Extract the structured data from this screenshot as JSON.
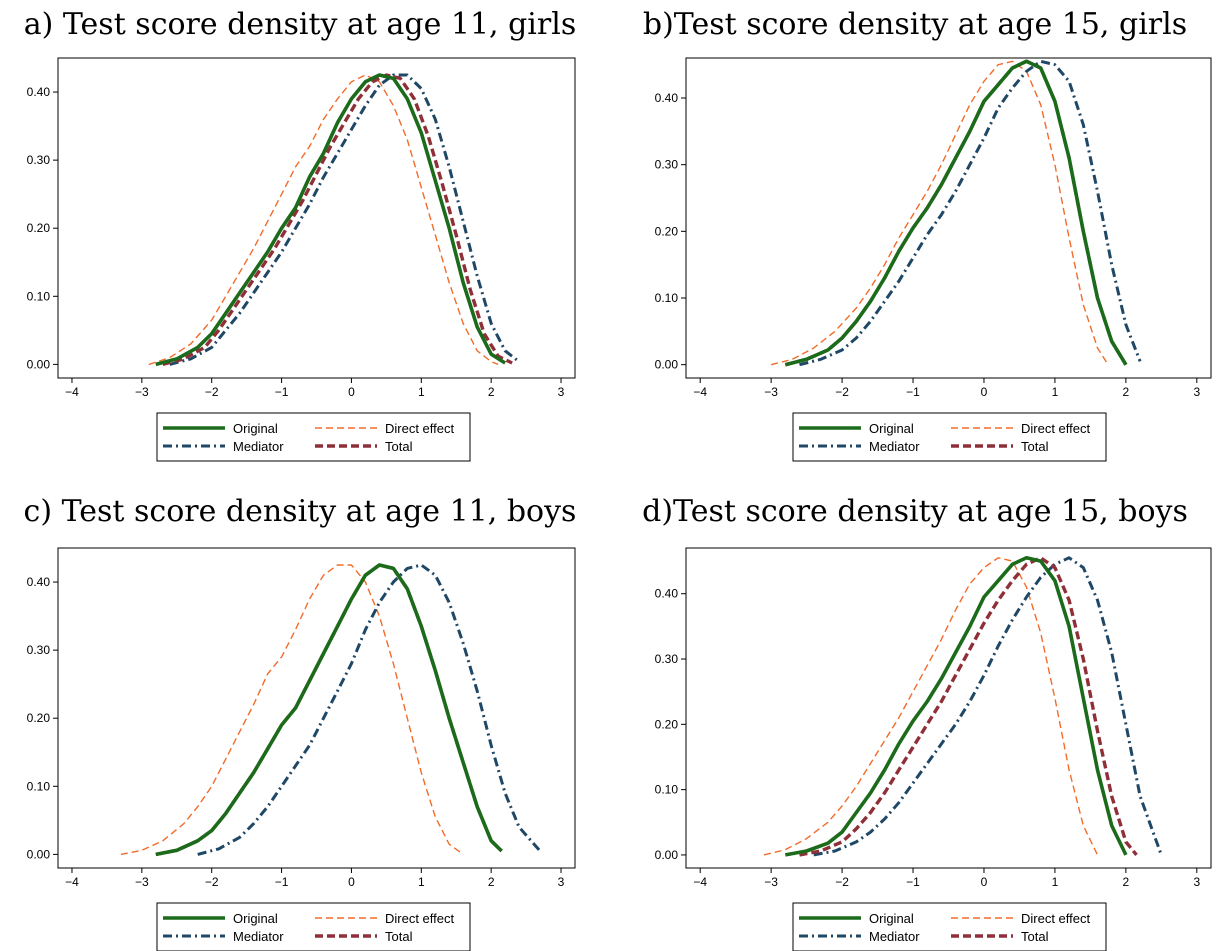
{
  "series_styles": {
    "Original": {
      "color": "#1b6b1b",
      "width": 3.6,
      "dash": ""
    },
    "Direct effect": {
      "color": "#f26b2a",
      "width": 1.4,
      "dash": "7 4"
    },
    "Mediator": {
      "color": "#1f4766",
      "width": 3.0,
      "dash": "9 4 2 4"
    },
    "Total": {
      "color": "#8f2f38",
      "width": 3.4,
      "dash": "8 4"
    }
  },
  "legend": {
    "entries": [
      "Original",
      "Direct effect",
      "Mediator",
      "Total"
    ]
  },
  "chart_data": [
    {
      "type": "line",
      "title": "a) Test score density at age 11, girls",
      "xlim": [
        -4.2,
        3.2
      ],
      "ylim": [
        -0.02,
        0.45
      ],
      "xticks": [
        -4,
        -3,
        -2,
        -1,
        0,
        1,
        2,
        3
      ],
      "yticks": [
        0.0,
        0.1,
        0.2,
        0.3,
        0.4
      ],
      "grid": false,
      "legend_position": "bottom",
      "series": [
        {
          "name": "Original",
          "x": [
            -2.8,
            -2.5,
            -2.2,
            -2.0,
            -1.8,
            -1.6,
            -1.4,
            -1.2,
            -1.0,
            -0.8,
            -0.6,
            -0.4,
            -0.2,
            0.0,
            0.2,
            0.4,
            0.6,
            0.8,
            1.0,
            1.2,
            1.4,
            1.6,
            1.8,
            2.0,
            2.2
          ],
          "y": [
            0.0,
            0.008,
            0.025,
            0.045,
            0.075,
            0.105,
            0.135,
            0.165,
            0.2,
            0.23,
            0.275,
            0.31,
            0.355,
            0.39,
            0.415,
            0.425,
            0.42,
            0.39,
            0.34,
            0.27,
            0.2,
            0.12,
            0.055,
            0.015,
            0.002
          ]
        },
        {
          "name": "Direct effect",
          "x": [
            -2.9,
            -2.6,
            -2.3,
            -2.0,
            -1.8,
            -1.6,
            -1.4,
            -1.2,
            -1.0,
            -0.8,
            -0.6,
            -0.4,
            -0.2,
            0.0,
            0.2,
            0.4,
            0.6,
            0.8,
            1.0,
            1.2,
            1.4,
            1.6,
            1.8,
            2.0,
            2.1
          ],
          "y": [
            0.0,
            0.01,
            0.03,
            0.065,
            0.1,
            0.135,
            0.17,
            0.21,
            0.25,
            0.29,
            0.32,
            0.36,
            0.39,
            0.415,
            0.425,
            0.415,
            0.38,
            0.33,
            0.26,
            0.19,
            0.12,
            0.06,
            0.02,
            0.004,
            0.0
          ]
        },
        {
          "name": "Mediator",
          "x": [
            -2.6,
            -2.3,
            -2.0,
            -1.8,
            -1.6,
            -1.4,
            -1.2,
            -1.0,
            -0.8,
            -0.6,
            -0.4,
            -0.2,
            0.0,
            0.2,
            0.4,
            0.6,
            0.8,
            1.0,
            1.2,
            1.4,
            1.6,
            1.8,
            2.0,
            2.2,
            2.4
          ],
          "y": [
            0.0,
            0.008,
            0.025,
            0.05,
            0.075,
            0.105,
            0.135,
            0.165,
            0.2,
            0.235,
            0.275,
            0.31,
            0.345,
            0.38,
            0.41,
            0.425,
            0.425,
            0.405,
            0.36,
            0.29,
            0.21,
            0.13,
            0.06,
            0.02,
            0.004
          ]
        },
        {
          "name": "Total",
          "x": [
            -2.7,
            -2.4,
            -2.1,
            -1.9,
            -1.7,
            -1.5,
            -1.3,
            -1.1,
            -0.9,
            -0.7,
            -0.5,
            -0.3,
            -0.1,
            0.1,
            0.3,
            0.5,
            0.7,
            0.9,
            1.1,
            1.3,
            1.5,
            1.7,
            1.9,
            2.1,
            2.3
          ],
          "y": [
            0.0,
            0.008,
            0.025,
            0.05,
            0.08,
            0.11,
            0.14,
            0.17,
            0.205,
            0.24,
            0.28,
            0.32,
            0.355,
            0.39,
            0.415,
            0.425,
            0.42,
            0.39,
            0.335,
            0.265,
            0.19,
            0.11,
            0.045,
            0.012,
            0.002
          ]
        }
      ]
    },
    {
      "type": "line",
      "title": "b)Test score density at age 15, girls",
      "xlim": [
        -4.2,
        3.2
      ],
      "ylim": [
        -0.02,
        0.46
      ],
      "xticks": [
        -4,
        -3,
        -2,
        -1,
        0,
        1,
        2,
        3
      ],
      "yticks": [
        0.0,
        0.1,
        0.2,
        0.3,
        0.4
      ],
      "grid": false,
      "legend_position": "bottom",
      "series": [
        {
          "name": "Original",
          "x": [
            -2.8,
            -2.5,
            -2.2,
            -2.0,
            -1.8,
            -1.6,
            -1.4,
            -1.2,
            -1.0,
            -0.8,
            -0.6,
            -0.4,
            -0.2,
            0.0,
            0.2,
            0.4,
            0.6,
            0.8,
            1.0,
            1.2,
            1.4,
            1.6,
            1.8,
            2.0
          ],
          "y": [
            0.0,
            0.008,
            0.022,
            0.04,
            0.065,
            0.095,
            0.13,
            0.17,
            0.205,
            0.235,
            0.27,
            0.31,
            0.35,
            0.395,
            0.42,
            0.445,
            0.455,
            0.445,
            0.395,
            0.31,
            0.2,
            0.1,
            0.035,
            0.0
          ]
        },
        {
          "name": "Direct effect",
          "x": [
            -3.0,
            -2.7,
            -2.4,
            -2.1,
            -1.8,
            -1.6,
            -1.4,
            -1.2,
            -1.0,
            -0.8,
            -0.6,
            -0.4,
            -0.2,
            0.0,
            0.2,
            0.4,
            0.6,
            0.8,
            1.0,
            1.2,
            1.4,
            1.6,
            1.75
          ],
          "y": [
            0.0,
            0.008,
            0.025,
            0.05,
            0.085,
            0.115,
            0.15,
            0.19,
            0.225,
            0.26,
            0.3,
            0.345,
            0.39,
            0.425,
            0.45,
            0.455,
            0.44,
            0.39,
            0.3,
            0.19,
            0.09,
            0.025,
            0.0
          ]
        },
        {
          "name": "Mediator",
          "x": [
            -2.6,
            -2.3,
            -2.0,
            -1.8,
            -1.6,
            -1.4,
            -1.2,
            -1.0,
            -0.8,
            -0.6,
            -0.4,
            -0.2,
            0.0,
            0.2,
            0.4,
            0.6,
            0.8,
            1.0,
            1.2,
            1.4,
            1.6,
            1.8,
            2.0,
            2.2
          ],
          "y": [
            0.0,
            0.008,
            0.022,
            0.04,
            0.065,
            0.095,
            0.125,
            0.16,
            0.195,
            0.225,
            0.26,
            0.3,
            0.34,
            0.385,
            0.415,
            0.44,
            0.455,
            0.45,
            0.425,
            0.36,
            0.26,
            0.15,
            0.06,
            0.005
          ]
        },
        {
          "name": "Total",
          "x": [
            -2.8,
            -2.5,
            -2.2,
            -2.0,
            -1.8,
            -1.6,
            -1.4,
            -1.2,
            -1.0,
            -0.8,
            -0.6,
            -0.4,
            -0.2,
            0.0,
            0.2,
            0.4,
            0.6,
            0.8,
            1.0,
            1.2,
            1.4,
            1.6,
            1.8,
            2.0
          ],
          "y": [
            0.0,
            0.008,
            0.022,
            0.04,
            0.065,
            0.095,
            0.13,
            0.17,
            0.205,
            0.235,
            0.27,
            0.31,
            0.35,
            0.395,
            0.42,
            0.445,
            0.455,
            0.445,
            0.395,
            0.31,
            0.2,
            0.1,
            0.035,
            0.0
          ]
        }
      ]
    },
    {
      "type": "line",
      "title": "c) Test score density at age 11, boys",
      "xlim": [
        -4.2,
        3.2
      ],
      "ylim": [
        -0.02,
        0.45
      ],
      "xticks": [
        -4,
        -3,
        -2,
        -1,
        0,
        1,
        2,
        3
      ],
      "yticks": [
        0.0,
        0.1,
        0.2,
        0.3,
        0.4
      ],
      "grid": false,
      "legend_position": "bottom",
      "series": [
        {
          "name": "Original",
          "x": [
            -2.8,
            -2.5,
            -2.2,
            -2.0,
            -1.8,
            -1.6,
            -1.4,
            -1.2,
            -1.0,
            -0.8,
            -0.6,
            -0.4,
            -0.2,
            0.0,
            0.2,
            0.4,
            0.6,
            0.8,
            1.0,
            1.2,
            1.4,
            1.6,
            1.8,
            2.0,
            2.15
          ],
          "y": [
            0.0,
            0.006,
            0.02,
            0.035,
            0.06,
            0.09,
            0.12,
            0.155,
            0.19,
            0.215,
            0.255,
            0.295,
            0.335,
            0.375,
            0.41,
            0.425,
            0.42,
            0.39,
            0.335,
            0.27,
            0.2,
            0.135,
            0.07,
            0.02,
            0.005
          ]
        },
        {
          "name": "Direct effect",
          "x": [
            -3.3,
            -3.0,
            -2.7,
            -2.4,
            -2.2,
            -2.0,
            -1.8,
            -1.6,
            -1.4,
            -1.2,
            -1.0,
            -0.8,
            -0.6,
            -0.4,
            -0.2,
            0.0,
            0.2,
            0.4,
            0.6,
            0.8,
            1.0,
            1.2,
            1.4,
            1.6
          ],
          "y": [
            0.0,
            0.006,
            0.02,
            0.045,
            0.07,
            0.1,
            0.14,
            0.18,
            0.22,
            0.265,
            0.29,
            0.33,
            0.375,
            0.41,
            0.425,
            0.425,
            0.4,
            0.35,
            0.28,
            0.2,
            0.12,
            0.055,
            0.015,
            0.0
          ]
        },
        {
          "name": "Mediator",
          "x": [
            -2.2,
            -1.9,
            -1.6,
            -1.4,
            -1.2,
            -1.0,
            -0.8,
            -0.6,
            -0.4,
            -0.2,
            0.0,
            0.2,
            0.4,
            0.6,
            0.8,
            1.0,
            1.2,
            1.4,
            1.6,
            1.8,
            2.0,
            2.2,
            2.4,
            2.7
          ],
          "y": [
            0.0,
            0.008,
            0.025,
            0.045,
            0.07,
            0.1,
            0.13,
            0.16,
            0.2,
            0.24,
            0.28,
            0.33,
            0.37,
            0.4,
            0.42,
            0.425,
            0.41,
            0.37,
            0.31,
            0.24,
            0.16,
            0.09,
            0.04,
            0.005
          ]
        },
        {
          "name": "Total",
          "x": [
            -2.8,
            -2.5,
            -2.2,
            -2.0,
            -1.8,
            -1.6,
            -1.4,
            -1.2,
            -1.0,
            -0.8,
            -0.6,
            -0.4,
            -0.2,
            0.0,
            0.2,
            0.4,
            0.6,
            0.8,
            1.0,
            1.2,
            1.4,
            1.6,
            1.8,
            2.0,
            2.15
          ],
          "y": [
            0.0,
            0.006,
            0.02,
            0.035,
            0.06,
            0.09,
            0.12,
            0.155,
            0.19,
            0.215,
            0.255,
            0.295,
            0.335,
            0.375,
            0.41,
            0.425,
            0.42,
            0.39,
            0.335,
            0.27,
            0.2,
            0.135,
            0.07,
            0.02,
            0.005
          ]
        }
      ]
    },
    {
      "type": "line",
      "title": "d)Test score density at age 15, boys",
      "xlim": [
        -4.2,
        3.2
      ],
      "ylim": [
        -0.02,
        0.47
      ],
      "xticks": [
        -4,
        -3,
        -2,
        -1,
        0,
        1,
        2,
        3
      ],
      "yticks": [
        0.0,
        0.1,
        0.2,
        0.3,
        0.4
      ],
      "grid": false,
      "legend_position": "bottom",
      "series": [
        {
          "name": "Original",
          "x": [
            -2.8,
            -2.5,
            -2.2,
            -2.0,
            -1.8,
            -1.6,
            -1.4,
            -1.2,
            -1.0,
            -0.8,
            -0.6,
            -0.4,
            -0.2,
            0.0,
            0.2,
            0.4,
            0.6,
            0.8,
            1.0,
            1.2,
            1.4,
            1.6,
            1.8,
            2.0
          ],
          "y": [
            0.0,
            0.006,
            0.018,
            0.035,
            0.065,
            0.095,
            0.13,
            0.17,
            0.205,
            0.235,
            0.27,
            0.31,
            0.35,
            0.395,
            0.42,
            0.445,
            0.455,
            0.45,
            0.42,
            0.35,
            0.24,
            0.13,
            0.045,
            0.0
          ]
        },
        {
          "name": "Direct effect",
          "x": [
            -3.1,
            -2.8,
            -2.5,
            -2.2,
            -2.0,
            -1.8,
            -1.6,
            -1.4,
            -1.2,
            -1.0,
            -0.8,
            -0.6,
            -0.4,
            -0.2,
            0.0,
            0.2,
            0.4,
            0.6,
            0.8,
            1.0,
            1.2,
            1.4,
            1.6
          ],
          "y": [
            0.0,
            0.008,
            0.025,
            0.05,
            0.075,
            0.105,
            0.14,
            0.175,
            0.21,
            0.25,
            0.29,
            0.33,
            0.375,
            0.415,
            0.44,
            0.455,
            0.45,
            0.41,
            0.34,
            0.24,
            0.13,
            0.045,
            0.0
          ]
        },
        {
          "name": "Mediator",
          "x": [
            -2.4,
            -2.1,
            -1.8,
            -1.6,
            -1.4,
            -1.2,
            -1.0,
            -0.8,
            -0.6,
            -0.4,
            -0.2,
            0.0,
            0.2,
            0.4,
            0.6,
            0.8,
            1.0,
            1.2,
            1.4,
            1.6,
            1.8,
            2.0,
            2.2,
            2.5
          ],
          "y": [
            0.0,
            0.006,
            0.02,
            0.035,
            0.055,
            0.08,
            0.11,
            0.14,
            0.17,
            0.2,
            0.235,
            0.275,
            0.32,
            0.36,
            0.395,
            0.425,
            0.445,
            0.455,
            0.44,
            0.39,
            0.31,
            0.2,
            0.09,
            0.0
          ]
        },
        {
          "name": "Total",
          "x": [
            -2.6,
            -2.3,
            -2.0,
            -1.8,
            -1.6,
            -1.4,
            -1.2,
            -1.0,
            -0.8,
            -0.6,
            -0.4,
            -0.2,
            0.0,
            0.2,
            0.4,
            0.6,
            0.8,
            1.0,
            1.2,
            1.4,
            1.6,
            1.8,
            2.0,
            2.15
          ],
          "y": [
            0.0,
            0.006,
            0.02,
            0.04,
            0.065,
            0.095,
            0.13,
            0.165,
            0.2,
            0.235,
            0.275,
            0.315,
            0.355,
            0.39,
            0.42,
            0.445,
            0.455,
            0.44,
            0.39,
            0.3,
            0.19,
            0.09,
            0.02,
            0.0
          ]
        }
      ]
    }
  ]
}
